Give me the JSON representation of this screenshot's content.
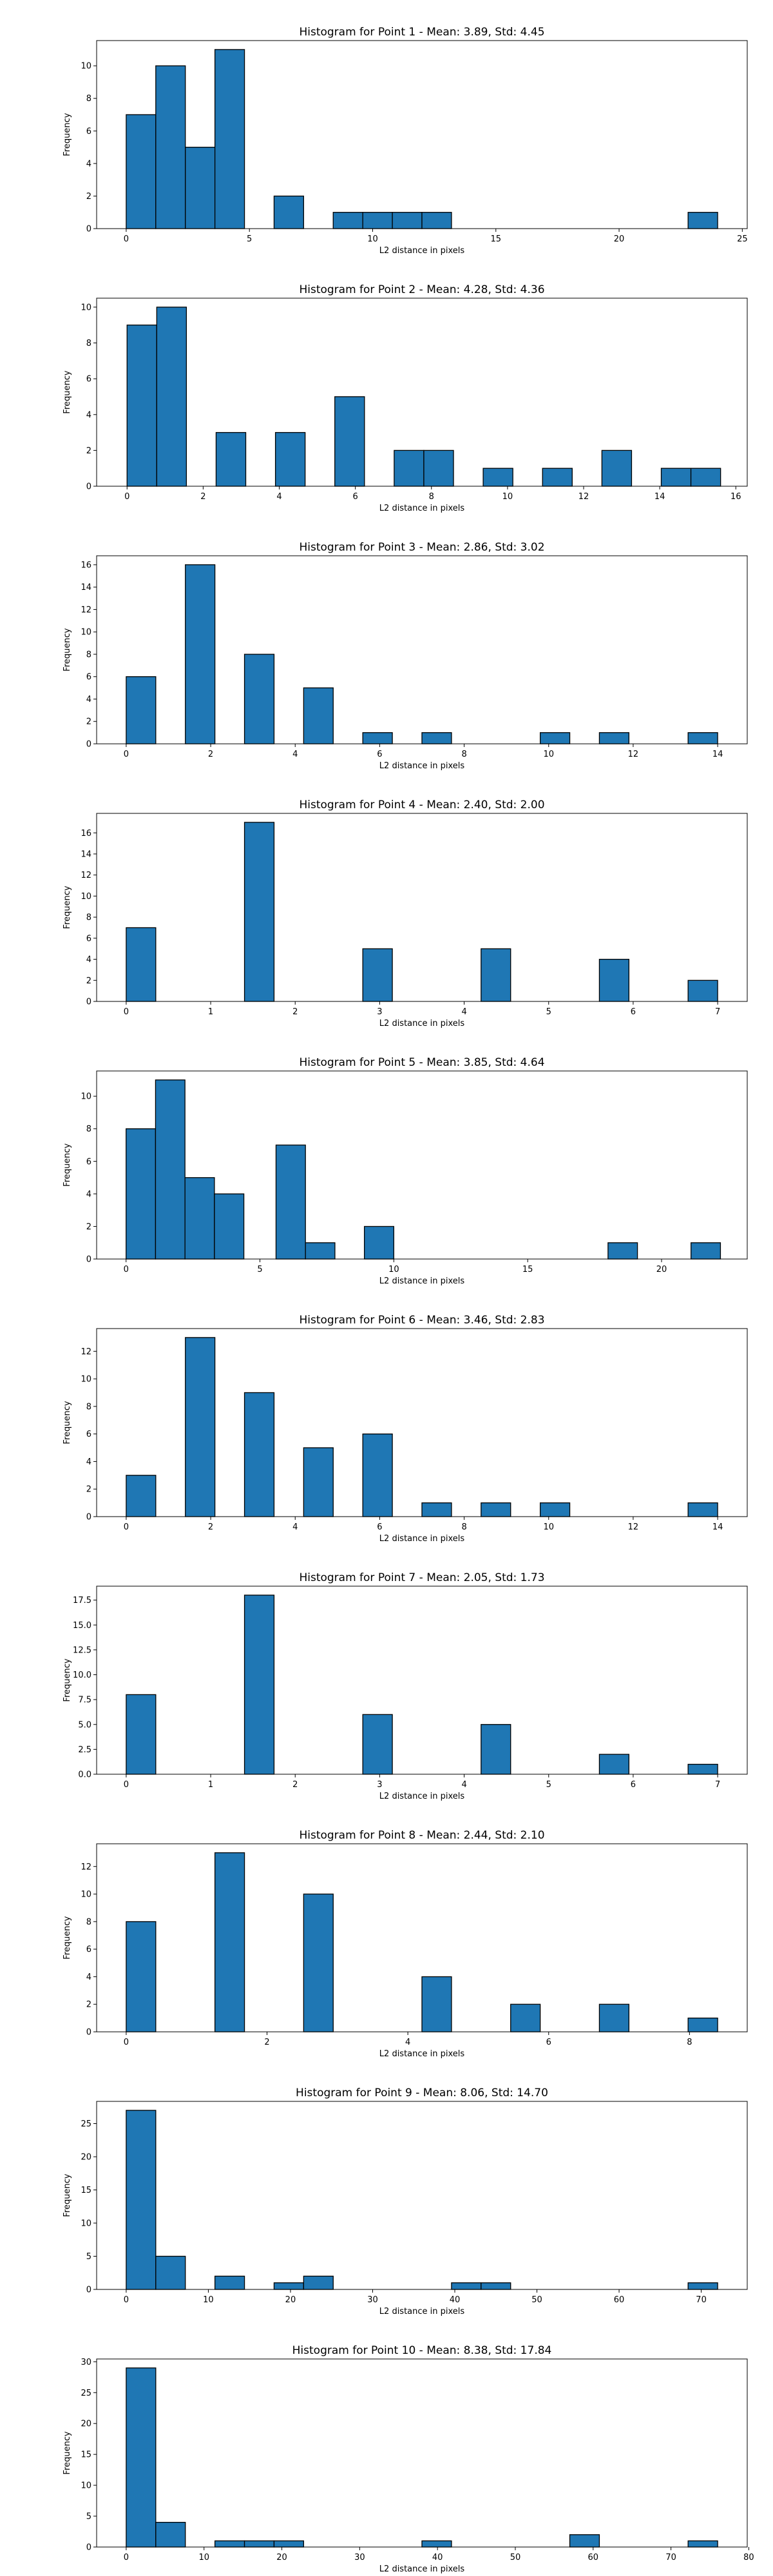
{
  "chart_data": [
    {
      "type": "bar",
      "title": "Histogram for Point 1 - Mean: 3.89, Std: 4.45",
      "xlabel": "L2 distance in pixels",
      "ylabel": "Frequency",
      "xlim": [
        -1.2,
        25.2
      ],
      "ylim": [
        0,
        11.55
      ],
      "xticks": [
        0,
        5,
        10,
        15,
        20,
        25
      ],
      "yticks": [
        0,
        2,
        4,
        6,
        8,
        10
      ],
      "bins": [
        {
          "x0": 0.0,
          "x1": 1.2,
          "count": 7
        },
        {
          "x0": 1.2,
          "x1": 2.4,
          "count": 10
        },
        {
          "x0": 2.4,
          "x1": 3.6,
          "count": 5
        },
        {
          "x0": 3.6,
          "x1": 4.8,
          "count": 11
        },
        {
          "x0": 6.0,
          "x1": 7.2,
          "count": 2
        },
        {
          "x0": 8.4,
          "x1": 9.6,
          "count": 1
        },
        {
          "x0": 9.6,
          "x1": 10.8,
          "count": 1
        },
        {
          "x0": 10.8,
          "x1": 12.0,
          "count": 1
        },
        {
          "x0": 12.0,
          "x1": 13.2,
          "count": 1
        },
        {
          "x0": 22.8,
          "x1": 24.0,
          "count": 1
        }
      ]
    },
    {
      "type": "bar",
      "title": "Histogram for Point 2 - Mean: 4.28, Std: 4.36",
      "xlabel": "L2 distance in pixels",
      "ylabel": "Frequency",
      "xlim": [
        -0.8,
        16.3
      ],
      "ylim": [
        0,
        10.5
      ],
      "xticks": [
        0,
        2,
        4,
        6,
        8,
        10,
        12,
        14,
        16
      ],
      "yticks": [
        0,
        2,
        4,
        6,
        8,
        10
      ],
      "bins": [
        {
          "x0": 0.0,
          "x1": 0.78,
          "count": 9
        },
        {
          "x0": 0.78,
          "x1": 1.56,
          "count": 10
        },
        {
          "x0": 2.34,
          "x1": 3.12,
          "count": 3
        },
        {
          "x0": 3.9,
          "x1": 4.68,
          "count": 3
        },
        {
          "x0": 5.46,
          "x1": 6.24,
          "count": 5
        },
        {
          "x0": 7.02,
          "x1": 7.8,
          "count": 2
        },
        {
          "x0": 7.8,
          "x1": 8.58,
          "count": 2
        },
        {
          "x0": 9.36,
          "x1": 10.14,
          "count": 1
        },
        {
          "x0": 10.92,
          "x1": 11.7,
          "count": 1
        },
        {
          "x0": 12.48,
          "x1": 13.26,
          "count": 2
        },
        {
          "x0": 14.04,
          "x1": 14.82,
          "count": 1
        },
        {
          "x0": 14.82,
          "x1": 15.6,
          "count": 1
        }
      ]
    },
    {
      "type": "bar",
      "title": "Histogram for Point 3 - Mean: 2.86, Std: 3.02",
      "xlabel": "L2 distance in pixels",
      "ylabel": "Frequency",
      "xlim": [
        -0.7,
        14.7
      ],
      "ylim": [
        0,
        16.8
      ],
      "xticks": [
        0,
        2,
        4,
        6,
        8,
        10,
        12,
        14
      ],
      "yticks": [
        0,
        2,
        4,
        6,
        8,
        10,
        12,
        14,
        16
      ],
      "bins": [
        {
          "x0": 0.0,
          "x1": 0.7,
          "count": 6
        },
        {
          "x0": 1.4,
          "x1": 2.1,
          "count": 16
        },
        {
          "x0": 2.8,
          "x1": 3.5,
          "count": 8
        },
        {
          "x0": 4.2,
          "x1": 4.9,
          "count": 5
        },
        {
          "x0": 5.6,
          "x1": 6.3,
          "count": 1
        },
        {
          "x0": 7.0,
          "x1": 7.7,
          "count": 1
        },
        {
          "x0": 9.8,
          "x1": 10.5,
          "count": 1
        },
        {
          "x0": 11.2,
          "x1": 11.9,
          "count": 1
        },
        {
          "x0": 13.3,
          "x1": 14.0,
          "count": 1
        }
      ]
    },
    {
      "type": "bar",
      "title": "Histogram for Point 4 - Mean: 2.40, Std: 2.00",
      "xlabel": "L2 distance in pixels",
      "ylabel": "Frequency",
      "xlim": [
        -0.35,
        7.35
      ],
      "ylim": [
        0,
        17.85
      ],
      "xticks": [
        0,
        1,
        2,
        3,
        4,
        5,
        6,
        7
      ],
      "yticks": [
        0,
        2,
        4,
        6,
        8,
        10,
        12,
        14,
        16
      ],
      "bins": [
        {
          "x0": 0.0,
          "x1": 0.35,
          "count": 7
        },
        {
          "x0": 1.4,
          "x1": 1.75,
          "count": 17
        },
        {
          "x0": 2.8,
          "x1": 3.15,
          "count": 5
        },
        {
          "x0": 4.2,
          "x1": 4.55,
          "count": 5
        },
        {
          "x0": 5.6,
          "x1": 5.95,
          "count": 4
        },
        {
          "x0": 6.65,
          "x1": 7.0,
          "count": 2
        }
      ]
    },
    {
      "type": "bar",
      "title": "Histogram for Point 5 - Mean: 3.85, Std: 4.64",
      "xlabel": "L2 distance in pixels",
      "ylabel": "Frequency",
      "xlim": [
        -1.1,
        23.2
      ],
      "ylim": [
        0,
        11.55
      ],
      "xticks": [
        0,
        5,
        10,
        15,
        20
      ],
      "yticks": [
        0,
        2,
        4,
        6,
        8,
        10
      ],
      "bins": [
        {
          "x0": 0.0,
          "x1": 1.1,
          "count": 8
        },
        {
          "x0": 1.1,
          "x1": 2.2,
          "count": 11
        },
        {
          "x0": 2.2,
          "x1": 3.3,
          "count": 5
        },
        {
          "x0": 3.3,
          "x1": 4.4,
          "count": 4
        },
        {
          "x0": 5.6,
          "x1": 6.7,
          "count": 7
        },
        {
          "x0": 6.7,
          "x1": 7.8,
          "count": 1
        },
        {
          "x0": 8.9,
          "x1": 10.0,
          "count": 2
        },
        {
          "x0": 18.0,
          "x1": 19.1,
          "count": 1
        },
        {
          "x0": 21.1,
          "x1": 22.2,
          "count": 1
        }
      ]
    },
    {
      "type": "bar",
      "title": "Histogram for Point 6 - Mean: 3.46, Std: 2.83",
      "xlabel": "L2 distance in pixels",
      "ylabel": "Frequency",
      "xlim": [
        -0.7,
        14.7
      ],
      "ylim": [
        0,
        13.65
      ],
      "xticks": [
        0,
        2,
        4,
        6,
        8,
        10,
        12,
        14
      ],
      "yticks": [
        0,
        2,
        4,
        6,
        8,
        10,
        12
      ],
      "bins": [
        {
          "x0": 0.0,
          "x1": 0.7,
          "count": 3
        },
        {
          "x0": 1.4,
          "x1": 2.1,
          "count": 13
        },
        {
          "x0": 2.8,
          "x1": 3.5,
          "count": 9
        },
        {
          "x0": 4.2,
          "x1": 4.9,
          "count": 5
        },
        {
          "x0": 5.6,
          "x1": 6.3,
          "count": 6
        },
        {
          "x0": 7.0,
          "x1": 7.7,
          "count": 1
        },
        {
          "x0": 8.4,
          "x1": 9.1,
          "count": 1
        },
        {
          "x0": 9.8,
          "x1": 10.5,
          "count": 1
        },
        {
          "x0": 13.3,
          "x1": 14.0,
          "count": 1
        }
      ]
    },
    {
      "type": "bar",
      "title": "Histogram for Point 7 - Mean: 2.05, Std: 1.73",
      "xlabel": "L2 distance in pixels",
      "ylabel": "Frequency",
      "xlim": [
        -0.35,
        7.35
      ],
      "ylim": [
        0,
        18.9
      ],
      "xticks": [
        0,
        1,
        2,
        3,
        4,
        5,
        6,
        7
      ],
      "yticks": [
        0.0,
        2.5,
        5.0,
        7.5,
        10.0,
        12.5,
        15.0,
        17.5
      ],
      "ytick_labels": [
        "0.0",
        "2.5",
        "5.0",
        "7.5",
        "10.0",
        "12.5",
        "15.0",
        "17.5"
      ],
      "bins": [
        {
          "x0": 0.0,
          "x1": 0.35,
          "count": 8
        },
        {
          "x0": 1.4,
          "x1": 1.75,
          "count": 18
        },
        {
          "x0": 2.8,
          "x1": 3.15,
          "count": 6
        },
        {
          "x0": 4.2,
          "x1": 4.55,
          "count": 5
        },
        {
          "x0": 5.6,
          "x1": 5.95,
          "count": 2
        },
        {
          "x0": 6.65,
          "x1": 7.0,
          "count": 1
        }
      ]
    },
    {
      "type": "bar",
      "title": "Histogram for Point 8 - Mean: 2.44, Std: 2.10",
      "xlabel": "L2 distance in pixels",
      "ylabel": "Frequency",
      "xlim": [
        -0.42,
        8.82
      ],
      "ylim": [
        0,
        13.65
      ],
      "xticks": [
        0,
        2,
        4,
        6,
        8
      ],
      "yticks": [
        0,
        2,
        4,
        6,
        8,
        10,
        12
      ],
      "bins": [
        {
          "x0": 0.0,
          "x1": 0.42,
          "count": 8
        },
        {
          "x0": 1.26,
          "x1": 1.68,
          "count": 13
        },
        {
          "x0": 2.52,
          "x1": 2.94,
          "count": 10
        },
        {
          "x0": 4.2,
          "x1": 4.62,
          "count": 4
        },
        {
          "x0": 5.46,
          "x1": 5.88,
          "count": 2
        },
        {
          "x0": 6.72,
          "x1": 7.14,
          "count": 2
        },
        {
          "x0": 7.98,
          "x1": 8.4,
          "count": 1
        }
      ]
    },
    {
      "type": "bar",
      "title": "Histogram for Point 9 - Mean: 8.06, Std: 14.70",
      "xlabel": "L2 distance in pixels",
      "ylabel": "Frequency",
      "xlim": [
        -3.6,
        75.6
      ],
      "ylim": [
        0,
        28.35
      ],
      "xticks": [
        0,
        10,
        20,
        30,
        40,
        50,
        60,
        70
      ],
      "yticks": [
        0,
        5,
        10,
        15,
        20,
        25
      ],
      "bins": [
        {
          "x0": 0.0,
          "x1": 3.6,
          "count": 27
        },
        {
          "x0": 3.6,
          "x1": 7.2,
          "count": 5
        },
        {
          "x0": 10.8,
          "x1": 14.4,
          "count": 2
        },
        {
          "x0": 18.0,
          "x1": 21.6,
          "count": 1
        },
        {
          "x0": 21.6,
          "x1": 25.2,
          "count": 2
        },
        {
          "x0": 39.6,
          "x1": 43.2,
          "count": 1
        },
        {
          "x0": 43.2,
          "x1": 46.8,
          "count": 1
        },
        {
          "x0": 68.4,
          "x1": 72.0,
          "count": 1
        }
      ]
    },
    {
      "type": "bar",
      "title": "Histogram for Point 10 - Mean: 8.38, Std: 17.84",
      "xlabel": "L2 distance in pixels",
      "ylabel": "Frequency",
      "xlim": [
        -3.8,
        79.8
      ],
      "ylim": [
        0,
        30.45
      ],
      "xticks": [
        0,
        10,
        20,
        30,
        40,
        50,
        60,
        70,
        80
      ],
      "yticks": [
        0,
        5,
        10,
        15,
        20,
        25,
        30
      ],
      "bins": [
        {
          "x0": 0.0,
          "x1": 3.8,
          "count": 29
        },
        {
          "x0": 3.8,
          "x1": 7.6,
          "count": 4
        },
        {
          "x0": 11.4,
          "x1": 15.2,
          "count": 1
        },
        {
          "x0": 15.2,
          "x1": 19.0,
          "count": 1
        },
        {
          "x0": 19.0,
          "x1": 22.8,
          "count": 1
        },
        {
          "x0": 38.0,
          "x1": 41.8,
          "count": 1
        },
        {
          "x0": 57.0,
          "x1": 60.8,
          "count": 2
        },
        {
          "x0": 72.2,
          "x1": 76.0,
          "count": 1
        }
      ]
    }
  ]
}
